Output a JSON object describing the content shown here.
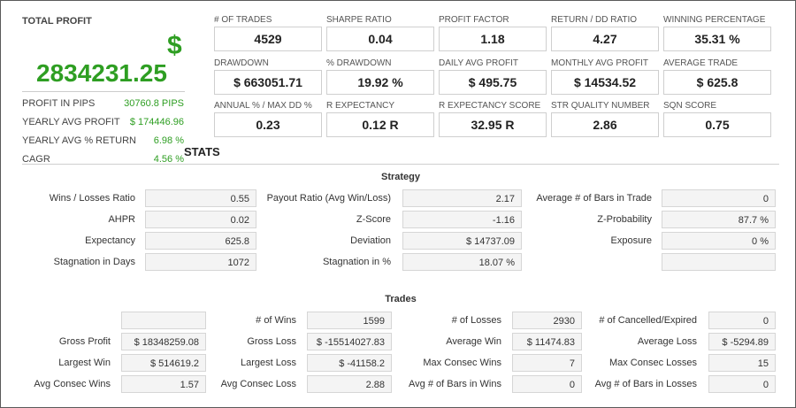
{
  "summary": {
    "title": "TOTAL PROFIT",
    "currency_symbol": "$",
    "total_profit": "2834231.25",
    "rows": [
      {
        "label": "PROFIT IN PIPS",
        "value": "30760.8 PIPS"
      },
      {
        "label": "YEARLY AVG PROFIT",
        "value": "$ 174446.96"
      },
      {
        "label": "YEARLY AVG % RETURN",
        "value": "6.98 %"
      },
      {
        "label": "CAGR",
        "value": "4.56 %"
      }
    ]
  },
  "metrics": [
    {
      "label": "# OF TRADES",
      "value": "4529"
    },
    {
      "label": "SHARPE RATIO",
      "value": "0.04"
    },
    {
      "label": "PROFIT FACTOR",
      "value": "1.18"
    },
    {
      "label": "RETURN / DD RATIO",
      "value": "4.27"
    },
    {
      "label": "WINNING PERCENTAGE",
      "value": "35.31 %"
    },
    {
      "label": "DRAWDOWN",
      "value": "$ 663051.71"
    },
    {
      "label": "% DRAWDOWN",
      "value": "19.92 %"
    },
    {
      "label": "DAILY AVG PROFIT",
      "value": "$ 495.75"
    },
    {
      "label": "MONTHLY AVG PROFIT",
      "value": "$ 14534.52"
    },
    {
      "label": "AVERAGE TRADE",
      "value": "$ 625.8"
    },
    {
      "label": "ANNUAL % / MAX DD %",
      "value": "0.23"
    },
    {
      "label": "R EXPECTANCY",
      "value": "0.12 R"
    },
    {
      "label": "R EXPECTANCY SCORE",
      "value": "32.95 R"
    },
    {
      "label": "STR QUALITY NUMBER",
      "value": "2.86"
    },
    {
      "label": "SQN SCORE",
      "value": "0.75"
    }
  ],
  "stats_title": "STATS",
  "strategy": {
    "title": "Strategy",
    "rows": [
      [
        {
          "label": "Wins / Losses Ratio",
          "value": "0.55"
        },
        {
          "label": "Payout Ratio (Avg Win/Loss)",
          "value": "2.17"
        },
        {
          "label": "Average # of Bars in Trade",
          "value": "0"
        }
      ],
      [
        {
          "label": "AHPR",
          "value": "0.02"
        },
        {
          "label": "Z-Score",
          "value": "-1.16"
        },
        {
          "label": "Z-Probability",
          "value": "87.7 %"
        }
      ],
      [
        {
          "label": "Expectancy",
          "value": "625.8"
        },
        {
          "label": "Deviation",
          "value": "$ 14737.09"
        },
        {
          "label": "Exposure",
          "value": "0 %"
        }
      ],
      [
        {
          "label": "Stagnation in Days",
          "value": "1072"
        },
        {
          "label": "Stagnation in %",
          "value": "18.07 %"
        },
        {
          "label": "",
          "value": ""
        }
      ]
    ]
  },
  "trades": {
    "title": "Trades",
    "rows": [
      [
        {
          "label": "",
          "value": ""
        },
        {
          "label": "# of Wins",
          "value": "1599"
        },
        {
          "label": "# of Losses",
          "value": "2930"
        },
        {
          "label": "# of Cancelled/Expired",
          "value": "0"
        }
      ],
      [
        {
          "label": "Gross Profit",
          "value": "$ 18348259.08"
        },
        {
          "label": "Gross Loss",
          "value": "$ -15514027.83"
        },
        {
          "label": "Average Win",
          "value": "$ 11474.83"
        },
        {
          "label": "Average Loss",
          "value": "$ -5294.89"
        }
      ],
      [
        {
          "label": "Largest Win",
          "value": "$ 514619.2"
        },
        {
          "label": "Largest Loss",
          "value": "$ -41158.2"
        },
        {
          "label": "Max Consec Wins",
          "value": "7"
        },
        {
          "label": "Max Consec Losses",
          "value": "15"
        }
      ],
      [
        {
          "label": "Avg Consec Wins",
          "value": "1.57"
        },
        {
          "label": "Avg Consec Loss",
          "value": "2.88"
        },
        {
          "label": "Avg # of Bars in Wins",
          "value": "0"
        },
        {
          "label": "Avg # of Bars in Losses",
          "value": "0"
        }
      ]
    ]
  },
  "colors": {
    "profit_green": "#2e9e22",
    "box_border": "#cfcfcf",
    "grid_box_bg": "#f4f4f4"
  }
}
